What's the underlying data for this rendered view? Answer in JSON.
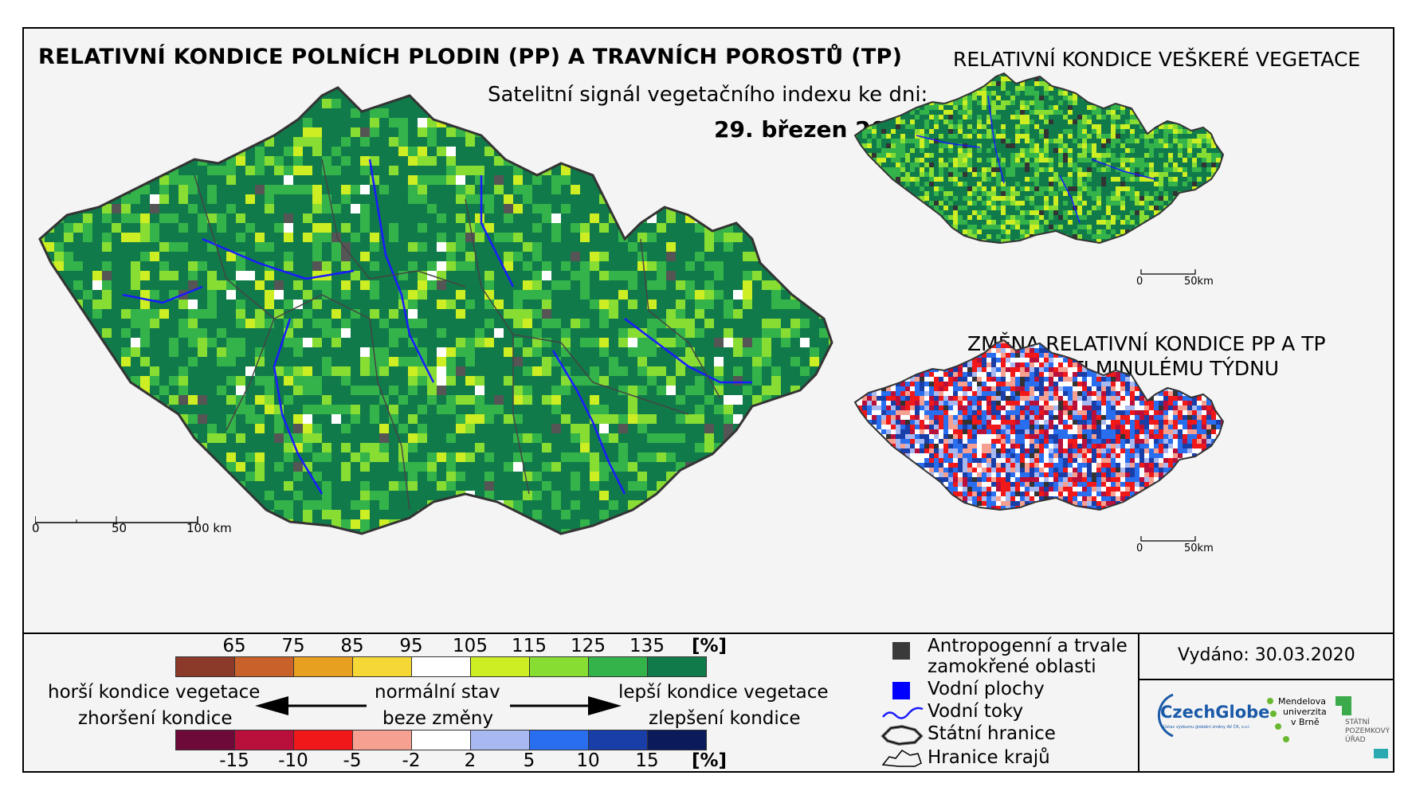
{
  "main_title": "RELATIVNÍ KONDICE POLNÍCH PLODIN (PP) A TRAVNÍCH POROSTŮ (TP)",
  "subtitle": "Satelitní signál vegetačního indexu ke dni:",
  "date": "29. březen 2020",
  "right_top_title": "RELATIVNÍ KONDICE VEŠKERÉ VEGETACE",
  "right_bottom_title_line1": "ZMĚNA RELATIVNÍ KONDICE PP A TP",
  "right_bottom_title_line2": "OPROTI MINULÉMU TÝDNU",
  "main_scale": {
    "labels": [
      "0",
      "50",
      "100 km"
    ]
  },
  "small_scale": {
    "labels": [
      "0",
      "50km"
    ]
  },
  "condition_scale": {
    "ticks": [
      "65",
      "75",
      "85",
      "95",
      "105",
      "115",
      "125",
      "135"
    ],
    "unit": "[%]",
    "colors": [
      "#8b3a2a",
      "#c8622a",
      "#e8a020",
      "#f5d835",
      "#ffffff",
      "#ccee22",
      "#88dd33",
      "#33b34a",
      "#117a4a"
    ]
  },
  "change_scale": {
    "ticks": [
      "-15",
      "-10",
      "-5",
      "-2",
      "2",
      "5",
      "10",
      "15"
    ],
    "unit": "[%]",
    "colors": [
      "#6e0a3a",
      "#b8103a",
      "#f01818",
      "#f5a090",
      "#ffffff",
      "#a8b8f0",
      "#2a6ef0",
      "#1a3ea8",
      "#0a1a5a"
    ]
  },
  "arrows": {
    "left_line1": "horší kondice vegetace",
    "left_line2": "zhoršení kondice",
    "middle_line1": "normální stav",
    "middle_line2": "beze změny",
    "right_line1": "lepší kondice vegetace",
    "right_line2": "zlepšení kondice"
  },
  "legend": {
    "anthropogenic_line1": "Antropogenní a trvale",
    "anthropogenic_line2": "zamokřené oblasti",
    "water_bodies": "Vodní plochy",
    "rivers": "Vodní toky",
    "state_border": "Státní hranice",
    "region_border": "Hranice krajů"
  },
  "issued": "Vydáno: 30.03.2020",
  "logos": {
    "czechglobe": "CzechGlobe",
    "czechglobe_sub": "Ústav výzkumu globální změny AV ČR, v.v.i.",
    "mendel_line1": "Mendelova",
    "mendel_line2": "univerzita",
    "mendel_line3": "v Brně",
    "spu_line1": "STÁTNÍ",
    "spu_line2": "POZEMKOVÝ",
    "spu_line3": "ÚŘAD"
  }
}
